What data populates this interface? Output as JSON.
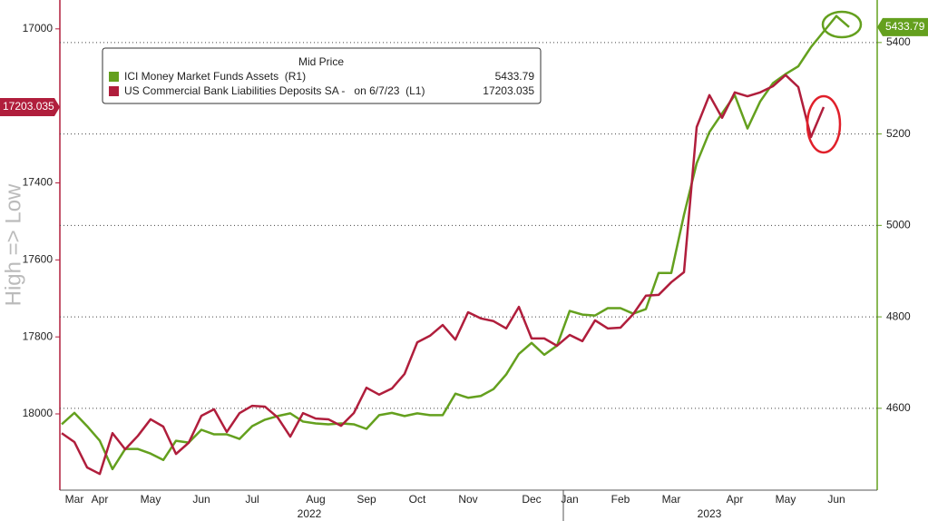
{
  "chart_data": {
    "type": "line",
    "axis_label": "High => Low",
    "legend_title": "Mid Price",
    "categories": [
      null,
      "Mar",
      null,
      "Apr",
      null,
      null,
      null,
      "May",
      null,
      null,
      null,
      "Jun",
      null,
      null,
      null,
      "Jul",
      null,
      null,
      null,
      null,
      "Aug",
      null,
      null,
      null,
      "Sep",
      null,
      null,
      null,
      "Oct",
      null,
      null,
      null,
      "Nov",
      null,
      null,
      null,
      null,
      "Dec",
      null,
      null,
      "Jan",
      null,
      null,
      null,
      "Feb",
      null,
      null,
      null,
      "Mar",
      null,
      null,
      null,
      null,
      "Apr",
      null,
      null,
      null,
      "May",
      null,
      null,
      null,
      "Jun",
      null
    ],
    "year_labels": [
      {
        "label": "2022",
        "start": 0,
        "end": 39
      },
      {
        "label": "2023",
        "start": 40,
        "end": 62
      }
    ],
    "series": [
      {
        "name": "ICI Money Market Funds Assets  (R1)",
        "color": "#64a01e",
        "axis": "y2",
        "values": [
          4565,
          4590,
          4561,
          4529,
          4467,
          4511,
          4511,
          4501,
          4487,
          4529,
          4525,
          4553,
          4543,
          4543,
          4533,
          4561,
          4575,
          4583,
          4589,
          4571,
          4567,
          4565,
          4567,
          4565,
          4555,
          4585,
          4590,
          4583,
          4589,
          4585,
          4585,
          4632,
          4623,
          4627,
          4642,
          4674,
          4719,
          4743,
          4717,
          4737,
          4813,
          4805,
          4803,
          4819,
          4819,
          4807,
          4817,
          4896,
          4896,
          5023,
          5136,
          5204,
          5245,
          5285,
          5212,
          5271,
          5311,
          5331,
          5348,
          5390,
          5424,
          5458,
          5433.79
        ]
      },
      {
        "name": "US Commercial Bank Liabilities Deposits SA -   on 6/7/23  (L1)",
        "color": "#b01e3c",
        "axis": "y",
        "values": [
          18050,
          18073,
          18139,
          18156,
          18050,
          18092,
          18057,
          18014,
          18033,
          18104,
          18075,
          18005,
          17988,
          18047,
          17998,
          17979,
          17981,
          18009,
          18059,
          17998,
          18012,
          18014,
          18031,
          17998,
          17932,
          17950,
          17934,
          17896,
          17814,
          17797,
          17769,
          17807,
          17736,
          17752,
          17759,
          17778,
          17722,
          17804,
          17804,
          17823,
          17795,
          17811,
          17757,
          17778,
          17776,
          17741,
          17693,
          17691,
          17658,
          17632,
          17255,
          17172,
          17231,
          17165,
          17175,
          17165,
          17149,
          17120,
          17151,
          17281,
          17203.035,
          null,
          null
        ]
      }
    ],
    "ylim": [
      16925,
      18198
    ],
    "inverted": true,
    "yticks": [
      17000,
      17400,
      17600,
      17800,
      18000
    ],
    "y2lim": [
      4421,
      5493
    ],
    "y2ticks": [
      4600,
      4800,
      5000,
      5200,
      5400
    ],
    "grid": true
  }
}
